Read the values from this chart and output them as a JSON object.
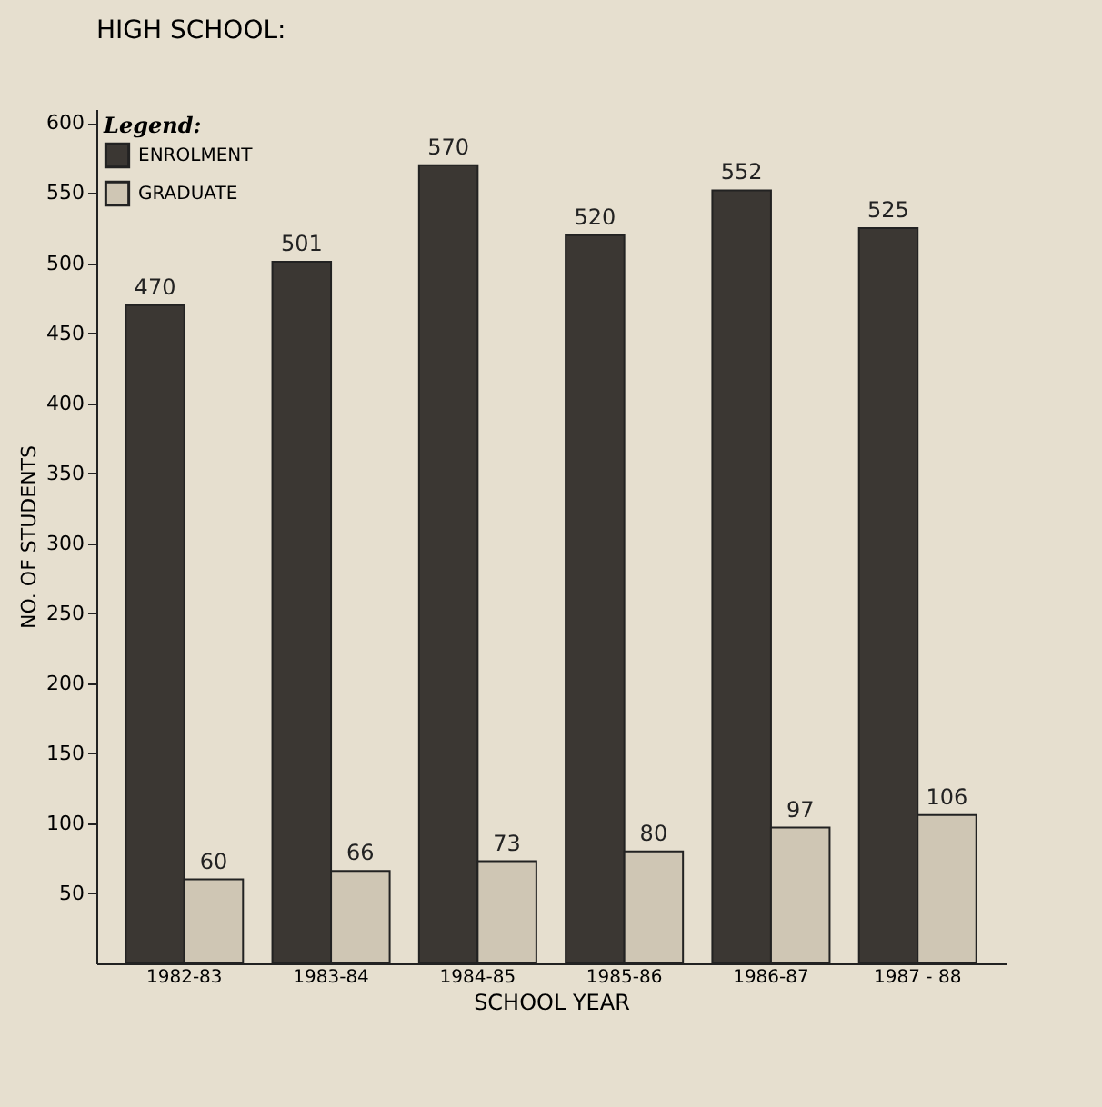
{
  "chart_data": {
    "type": "bar",
    "title": "HIGH SCHOOL:",
    "xlabel": "SCHOOL YEAR",
    "ylabel": "NO. OF STUDENTS",
    "legend_title": "Legend:",
    "categories": [
      "1982-83",
      "1983-84",
      "1984-85",
      "1985-86",
      "1986-87",
      "1987 - 88"
    ],
    "series": [
      {
        "name": "ENROLMENT",
        "color": "#3b3733",
        "values": [
          470,
          501,
          570,
          520,
          552,
          525
        ]
      },
      {
        "name": "GRADUATE",
        "color": "#cfc6b4",
        "values": [
          60,
          66,
          73,
          80,
          97,
          106
        ]
      }
    ],
    "ylim": [
      0,
      610
    ],
    "yticks": [
      50,
      100,
      150,
      200,
      250,
      300,
      350,
      400,
      450,
      500,
      550,
      600
    ],
    "data_labels": true,
    "grid": false,
    "legend": "top left"
  }
}
